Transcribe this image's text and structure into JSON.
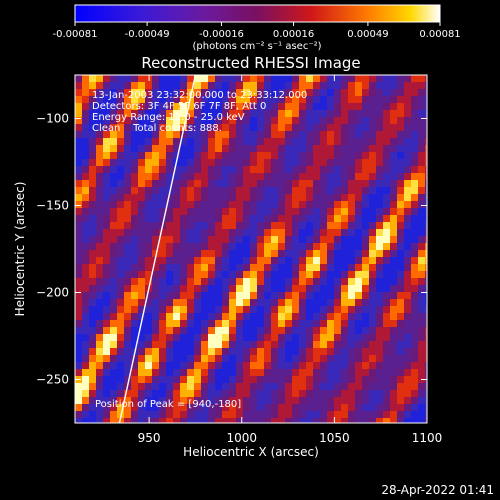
{
  "colorbar": {
    "ticks": [
      {
        "value": -0.00081,
        "label": "-0.00081"
      },
      {
        "value": -0.00049,
        "label": "-0.00049"
      },
      {
        "value": -0.00016,
        "label": "-0.00016"
      },
      {
        "value": 0.00016,
        "label": "0.00016"
      },
      {
        "value": 0.00049,
        "label": "0.00049"
      },
      {
        "value": 0.00081,
        "label": "0.00081"
      }
    ],
    "range": [
      -0.00081,
      0.00081
    ],
    "unit_label": "(photons cm⁻² s⁻¹ asec⁻²)"
  },
  "chart_data": {
    "type": "heatmap",
    "title": "Reconstructed RHESSI Image",
    "xlabel": "Heliocentric X (arcsec)",
    "ylabel": "Heliocentric Y (arcsec)",
    "xlim": [
      910,
      1100
    ],
    "ylim": [
      -275,
      -75
    ],
    "xticks": [
      950,
      1000,
      1050,
      1100
    ],
    "yticks": [
      -100,
      -150,
      -200,
      -250
    ],
    "colormap": "rhessi-blue-purple-red-yellow-white",
    "colors": {
      "negative": "#2020d0",
      "zero": "#4a1b6e",
      "mid": "#e02010",
      "high": "#ffd020",
      "max": "#ffffff"
    },
    "annotations": [
      "13-Jan-2003 23:32:00.000 to 23:33:12.000",
      "Detectors: 3F 4F 5F 6F 7F 8F, Att 0",
      "Energy Range: 12.0 - 25.0 keV",
      "Clean    Total counts: 888."
    ],
    "peak_label": "Position of Peak = [940,-180]",
    "peak": [
      940,
      -180
    ],
    "limb_line": {
      "x": [
        934,
        975
      ],
      "y": [
        -275,
        -75
      ]
    }
  },
  "timestamp": "28-Apr-2022 01:41"
}
